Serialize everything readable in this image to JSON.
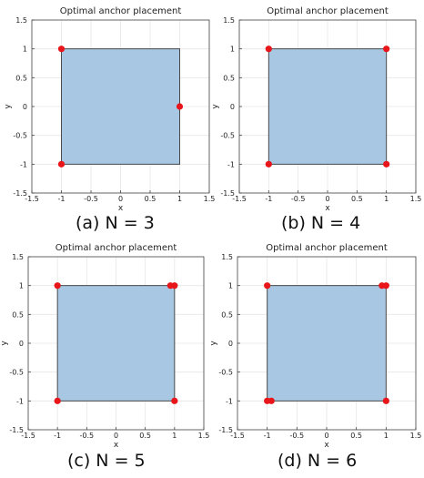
{
  "colors": {
    "fill": "#a7c7e3",
    "edge": "#4a4a4a",
    "marker": "#e8161b",
    "grid": "#e6e6e6",
    "axis": "#444444"
  },
  "chart_data": [
    {
      "type": "scatter",
      "title": "Optimal anchor placement",
      "xlabel": "x",
      "ylabel": "y",
      "xlim": [
        -1.5,
        1.5
      ],
      "ylim": [
        -1.5,
        1.5
      ],
      "xticks": [
        "-1.5",
        "-1",
        "-0.5",
        "0",
        "0.5",
        "1",
        "1.5"
      ],
      "yticks": [
        "-1.5",
        "-1",
        "-0.5",
        "0",
        "0.5",
        "1",
        "1.5"
      ],
      "grid": true,
      "region": [
        [
          -1,
          -1
        ],
        [
          1,
          -1
        ],
        [
          1,
          1
        ],
        [
          -1,
          1
        ]
      ],
      "points": [
        [
          -1,
          1
        ],
        [
          1,
          0
        ],
        [
          -1,
          -1
        ]
      ],
      "caption": "(a) N = 3"
    },
    {
      "type": "scatter",
      "title": "Optimal anchor placement",
      "xlabel": "x",
      "ylabel": "y",
      "xlim": [
        -1.5,
        1.5
      ],
      "ylim": [
        -1.5,
        1.5
      ],
      "xticks": [
        "-1.5",
        "-1",
        "-0.5",
        "0",
        "0.5",
        "1",
        "1.5"
      ],
      "yticks": [
        "-1.5",
        "-1",
        "-0.5",
        "0",
        "0.5",
        "1",
        "1.5"
      ],
      "grid": true,
      "region": [
        [
          -1,
          -1
        ],
        [
          1,
          -1
        ],
        [
          1,
          1
        ],
        [
          -1,
          1
        ]
      ],
      "points": [
        [
          -1,
          1
        ],
        [
          1,
          1
        ],
        [
          -1,
          -1
        ],
        [
          1,
          -1
        ]
      ],
      "caption": "(b) N = 4"
    },
    {
      "type": "scatter",
      "title": "Optimal anchor placement",
      "xlabel": "x",
      "ylabel": "y",
      "xlim": [
        -1.5,
        1.5
      ],
      "ylim": [
        -1.5,
        1.5
      ],
      "xticks": [
        "-1.5",
        "-1",
        "-0.5",
        "0",
        "0.5",
        "1",
        "1.5"
      ],
      "yticks": [
        "-1.5",
        "-1",
        "-0.5",
        "0",
        "0.5",
        "1",
        "1.5"
      ],
      "grid": true,
      "region": [
        [
          -1,
          -1
        ],
        [
          1,
          -1
        ],
        [
          1,
          1
        ],
        [
          -1,
          1
        ]
      ],
      "points": [
        [
          -1,
          1
        ],
        [
          0.93,
          1
        ],
        [
          1,
          1
        ],
        [
          -1,
          -1
        ],
        [
          1,
          -1
        ]
      ],
      "caption": "(c) N = 5"
    },
    {
      "type": "scatter",
      "title": "Optimal anchor placement",
      "xlabel": "x",
      "ylabel": "y",
      "xlim": [
        -1.5,
        1.5
      ],
      "ylim": [
        -1.5,
        1.5
      ],
      "xticks": [
        "-1.5",
        "-1",
        "-0.5",
        "0",
        "0.5",
        "1",
        "1.5"
      ],
      "yticks": [
        "-1.5",
        "-1",
        "-0.5",
        "0",
        "0.5",
        "1",
        "1.5"
      ],
      "grid": true,
      "region": [
        [
          -1,
          -1
        ],
        [
          1,
          -1
        ],
        [
          1,
          1
        ],
        [
          -1,
          1
        ]
      ],
      "points": [
        [
          -1,
          1
        ],
        [
          0.93,
          1
        ],
        [
          1,
          1
        ],
        [
          -1,
          -1
        ],
        [
          -0.93,
          -1
        ],
        [
          1,
          -1
        ]
      ],
      "caption": "(d) N = 6"
    }
  ]
}
